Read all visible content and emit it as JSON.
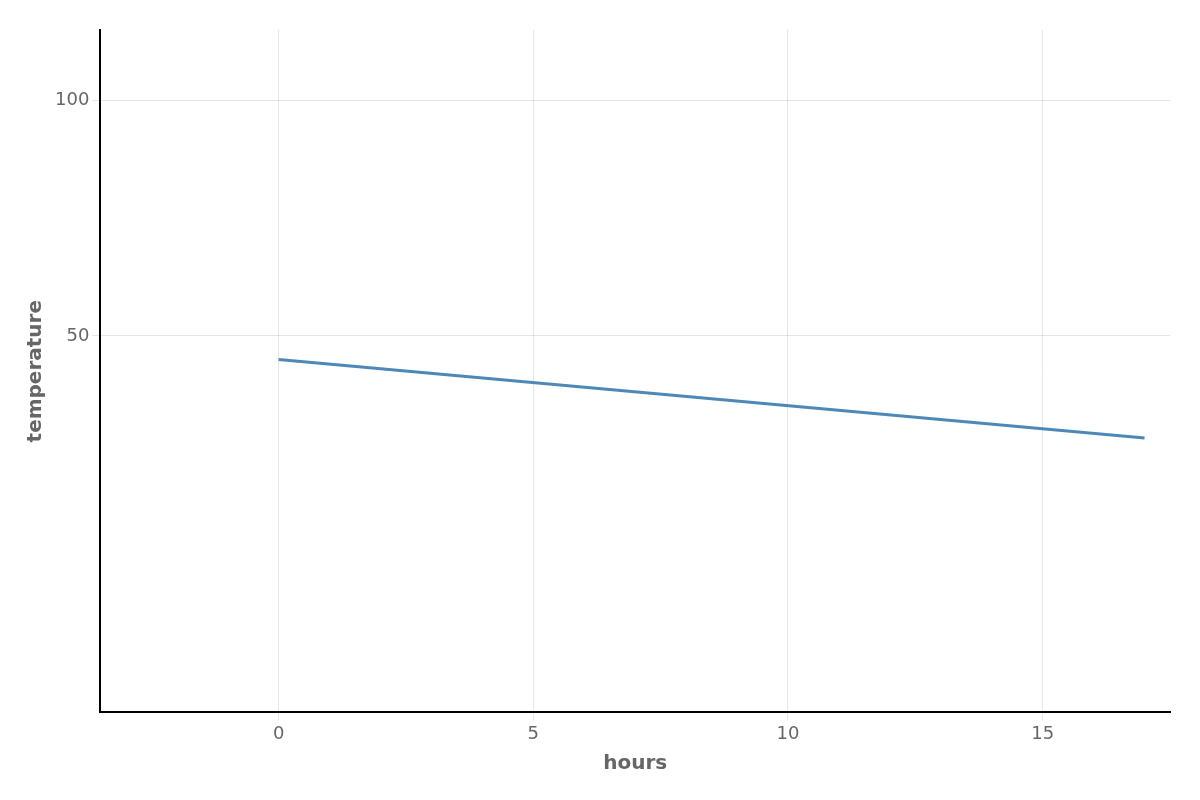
{
  "chart_data": {
    "type": "line",
    "x": [
      0,
      17
    ],
    "series": [
      {
        "color": "#4d88b8",
        "values": [
          45,
          28.33
        ]
      }
    ],
    "xlim": [
      -3.5,
      17.5
    ],
    "ylim": [
      -30,
      115
    ],
    "xticks": [
      0,
      5,
      10,
      15
    ],
    "yticks": [
      50,
      100
    ],
    "xlabel": "hours",
    "ylabel": "temperature",
    "grid": true
  }
}
